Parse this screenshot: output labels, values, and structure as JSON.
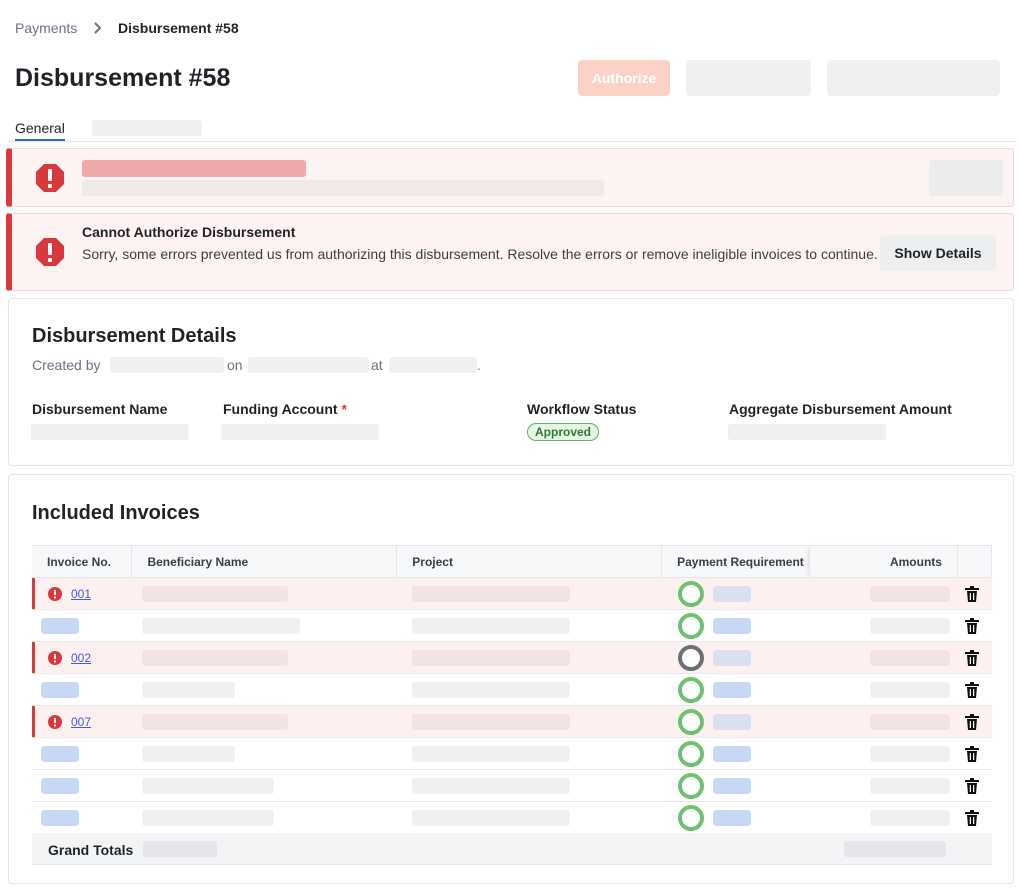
{
  "breadcrumb": {
    "parent": "Payments",
    "current": "Disbursement #58"
  },
  "page_title": "Disbursement #58",
  "actions": {
    "authorize_label": "Authorize"
  },
  "tabs": [
    {
      "label": "General",
      "active": true
    }
  ],
  "alerts": [
    {
      "title": "Cannot Authorize Disbursement",
      "message": "Sorry, some errors prevented us from authorizing this disbursement. Resolve the errors or remove ineligible invoices to continue.",
      "action_label": "Show Details"
    }
  ],
  "details": {
    "title": "Disbursement Details",
    "created_by_prefix": "Created by",
    "created_on_word": "on",
    "created_at_word": "at",
    "created_suffix": ".",
    "fields": {
      "name_label": "Disbursement Name",
      "funding_label": "Funding Account",
      "funding_required_mark": "*",
      "workflow_label": "Workflow Status",
      "workflow_value": "Approved",
      "aggregate_label": "Aggregate Disbursement Amount"
    }
  },
  "invoices": {
    "title": "Included Invoices",
    "columns": {
      "invoice_no": "Invoice No.",
      "beneficiary": "Beneficiary Name",
      "project": "Project",
      "payment_requirement": "Payment Requirement",
      "amounts": "Amounts"
    },
    "rows": [
      {
        "invoice_no": "001",
        "error": true,
        "requirement_status": "complete"
      },
      {
        "error": false,
        "requirement_status": "complete"
      },
      {
        "invoice_no": "002",
        "error": true,
        "requirement_status": "incomplete"
      },
      {
        "error": false,
        "requirement_status": "complete"
      },
      {
        "invoice_no": "007",
        "error": true,
        "requirement_status": "complete"
      },
      {
        "error": false,
        "requirement_status": "complete"
      },
      {
        "error": false,
        "requirement_status": "complete"
      },
      {
        "error": false,
        "requirement_status": "complete"
      }
    ],
    "grand_totals_label": "Grand Totals"
  },
  "colors": {
    "danger": "#d9383c",
    "success_ring": "#6cc26f",
    "pending_ring": "#6b7077",
    "link": "#3b64d6",
    "authorize_disabled": "#fcd2c6"
  },
  "icons": {
    "breadcrumb_separator": "chevron-right-icon",
    "alert": "octagon-alert-icon",
    "row_error": "circle-alert-icon",
    "row_delete": "trash-icon",
    "requirement": "status-ring-icon"
  }
}
